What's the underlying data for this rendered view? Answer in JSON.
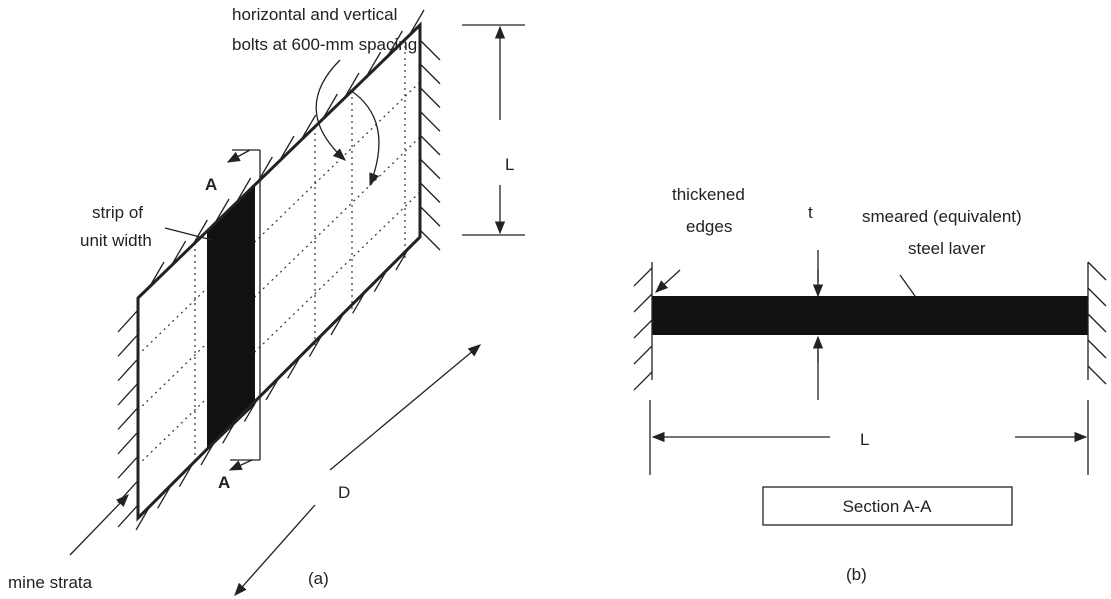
{
  "panel_a": {
    "bolts_label": [
      "horizontal and vertical",
      "bolts at 600-mm spacing"
    ],
    "height_label": "L",
    "section_marks": [
      "A",
      "A"
    ],
    "strip_label": [
      "strip of",
      "unit width"
    ],
    "length_label": "D",
    "strata_label": "mine strata",
    "caption": "(a)"
  },
  "panel_b": {
    "edges_label": [
      "thickened",
      "edges"
    ],
    "thickness_label": "t",
    "layer_label": [
      "smeared (equivalent)",
      "steel laver"
    ],
    "span_label": "L",
    "section_title": "Section A-A",
    "caption": "(b)"
  }
}
